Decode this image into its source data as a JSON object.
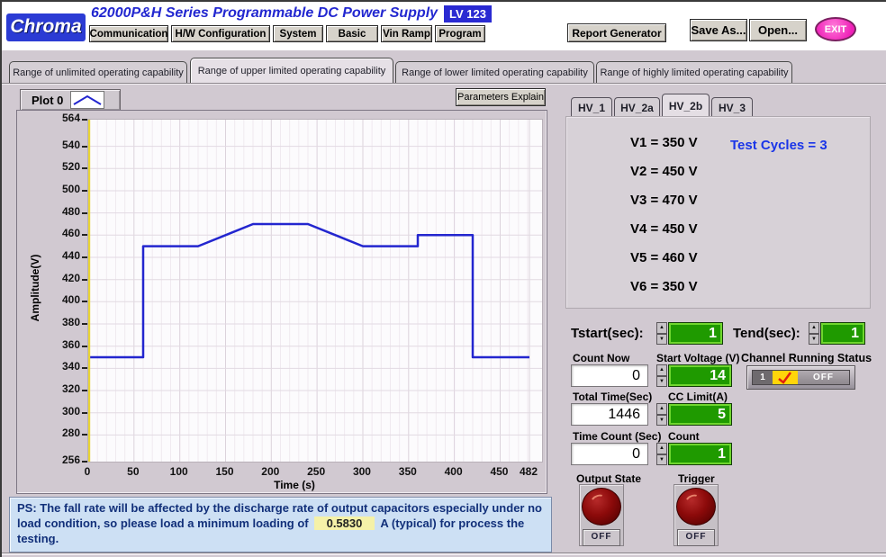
{
  "header": {
    "logo": "Chroma",
    "title": "62000P&H Series  Programmable DC Power Supply",
    "badge": "LV 123",
    "menu": [
      "Communication",
      "H/W Configuration",
      "System",
      "Basic",
      "Vin Ramp",
      "Program"
    ],
    "report_button": "Report Generator",
    "save_as_button": "Save As...",
    "open_button": "Open...",
    "exit_button": "EXIT"
  },
  "tabs": {
    "items": [
      "Range of unlimited operating capability",
      "Range of upper limited operating capability",
      "Range of lower limited operating capability",
      "Range of highly limited operating capability"
    ],
    "active_index": 1
  },
  "plot": {
    "params_button": "Parameters Explain"
  },
  "chart_data": {
    "type": "line",
    "title": "Plot 0",
    "xlabel": "Time (s)",
    "ylabel": "Amplitude(V)",
    "xlim": [
      0,
      482
    ],
    "ylim": [
      256,
      564
    ],
    "x_ticks": [
      0,
      50,
      100,
      150,
      200,
      250,
      300,
      350,
      400,
      450,
      482
    ],
    "y_ticks": [
      256,
      280,
      300,
      320,
      340,
      360,
      380,
      400,
      420,
      440,
      460,
      480,
      500,
      520,
      540,
      564
    ],
    "grid": true,
    "legend_position": "top-left",
    "series": [
      {
        "name": "Plot 0",
        "color": "#2326cf",
        "points": [
          [
            0,
            350
          ],
          [
            60,
            350
          ],
          [
            60,
            450
          ],
          [
            120,
            450
          ],
          [
            180,
            470
          ],
          [
            240,
            470
          ],
          [
            300,
            450
          ],
          [
            360,
            450
          ],
          [
            360,
            460
          ],
          [
            420,
            460
          ],
          [
            420,
            350
          ],
          [
            482,
            350
          ]
        ]
      }
    ]
  },
  "hv_panel": {
    "tabs": [
      "HV_1",
      "HV_2a",
      "HV_2b",
      "HV_3"
    ],
    "active_index": 2,
    "voltages": [
      "V1 = 350 V",
      "V2 = 450 V",
      "V3 = 470 V",
      "V4 = 450 V",
      "V5 = 460 V",
      "V6 = 350 V"
    ],
    "test_cycles": "Test Cycles = 3"
  },
  "controls": {
    "tstart_label": "Tstart(sec):",
    "tstart_value": "1",
    "tend_label": "Tend(sec):",
    "tend_value": "1",
    "count_now_label": "Count Now",
    "count_now_value": "0",
    "start_voltage_label": "Start Voltage (V)",
    "start_voltage_value": "14",
    "channel_status_label": "Channel Running Status",
    "channel_status_channel": "1",
    "channel_status_state": "OFF",
    "total_time_label": "Total Time(Sec)",
    "total_time_value": "1446",
    "cc_limit_label": "CC Limit(A)",
    "cc_limit_value": "5",
    "time_count_label": "Time Count (Sec)",
    "time_count_value": "0",
    "count_label": "Count",
    "count_value": "1",
    "output_state_label": "Output State",
    "output_state_value": "OFF",
    "trigger_label": "Trigger",
    "trigger_value": "OFF"
  },
  "note": {
    "text_before": "PS: The fall rate will be affected by the discharge rate of output capacitors especially under no load condition, so please load a minimum loading of",
    "highlight": "0.5830",
    "text_after": "A (typical) for process the testing."
  },
  "colors": {
    "title_blue": "#2227d0",
    "line_blue": "#2326cf",
    "field_green": "#1f9a00",
    "exit_pink": "#ef1fb8",
    "note_bg": "#cde0f4",
    "highlight_yellow": "#f5f1a8",
    "knob_red": "#8c0a0a",
    "status_yellow": "#ffd50a",
    "axis_yellow": "#e8d435"
  }
}
